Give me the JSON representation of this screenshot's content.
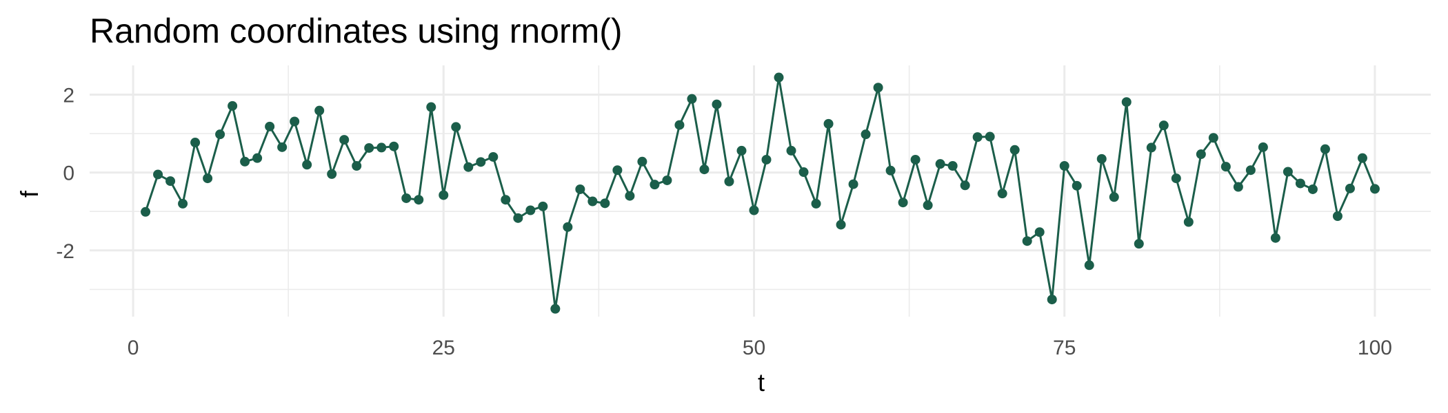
{
  "chart_data": {
    "type": "line",
    "title": "Random coordinates using rnorm()",
    "xlabel": "t",
    "ylabel": "f",
    "xlim": [
      -3.5,
      104.5
    ],
    "ylim": [
      -3.7,
      2.75
    ],
    "x_ticks": [
      0,
      25,
      50,
      75,
      100
    ],
    "x_tick_labels": [
      "0",
      "25",
      "50",
      "75",
      "100"
    ],
    "y_ticks": [
      -2,
      0,
      2
    ],
    "y_tick_labels": [
      "-2",
      "0",
      "2"
    ],
    "grid": true,
    "markers": true,
    "color": "#1b5e4a",
    "series": [
      {
        "x": [
          1,
          2,
          3,
          4,
          5,
          6,
          7,
          8,
          9,
          10,
          11,
          12,
          13,
          14,
          15,
          16,
          17,
          18,
          19,
          20,
          21,
          22,
          23,
          24,
          25,
          26,
          27,
          28,
          29,
          30,
          31,
          32,
          33,
          34,
          35,
          36,
          37,
          38,
          39,
          40,
          41,
          42,
          43,
          44,
          45,
          46,
          47,
          48,
          49,
          50,
          51,
          52,
          53,
          54,
          55,
          56,
          57,
          58,
          59,
          60,
          61,
          62,
          63,
          64,
          65,
          66,
          67,
          68,
          69,
          70,
          71,
          72,
          73,
          74,
          75,
          76,
          77,
          78,
          79,
          80,
          81,
          82,
          83,
          84,
          85,
          86,
          87,
          88,
          89,
          90,
          91,
          92,
          93,
          94,
          95,
          96,
          97,
          98,
          99,
          100
        ],
        "y": [
          -1.01,
          -0.05,
          -0.22,
          -0.8,
          0.77,
          -0.15,
          0.98,
          1.71,
          0.28,
          0.37,
          1.18,
          0.65,
          1.31,
          0.2,
          1.59,
          -0.04,
          0.84,
          0.17,
          0.63,
          0.64,
          0.67,
          -0.66,
          -0.7,
          1.68,
          -0.58,
          1.17,
          0.14,
          0.27,
          0.4,
          -0.7,
          -1.17,
          -0.97,
          -0.87,
          -3.5,
          -1.4,
          -0.43,
          -0.74,
          -0.79,
          0.06,
          -0.6,
          0.28,
          -0.31,
          -0.2,
          1.22,
          1.89,
          0.08,
          1.75,
          -0.23,
          0.56,
          -0.97,
          0.33,
          2.44,
          0.56,
          0.01,
          -0.8,
          1.25,
          -1.34,
          -0.3,
          0.98,
          2.18,
          0.05,
          -0.77,
          0.33,
          -0.84,
          0.22,
          0.17,
          -0.33,
          0.91,
          0.92,
          -0.54,
          0.58,
          -1.76,
          -1.53,
          -3.26,
          0.17,
          -0.34,
          -2.38,
          0.35,
          -0.63,
          1.81,
          -1.83,
          0.64,
          1.21,
          -0.15,
          -1.27,
          0.47,
          0.89,
          0.15,
          -0.37,
          0.06,
          0.65,
          -1.68,
          0.02,
          -0.28,
          -0.43,
          0.6,
          -1.12,
          -0.41,
          0.37,
          -0.42
        ]
      }
    ]
  }
}
